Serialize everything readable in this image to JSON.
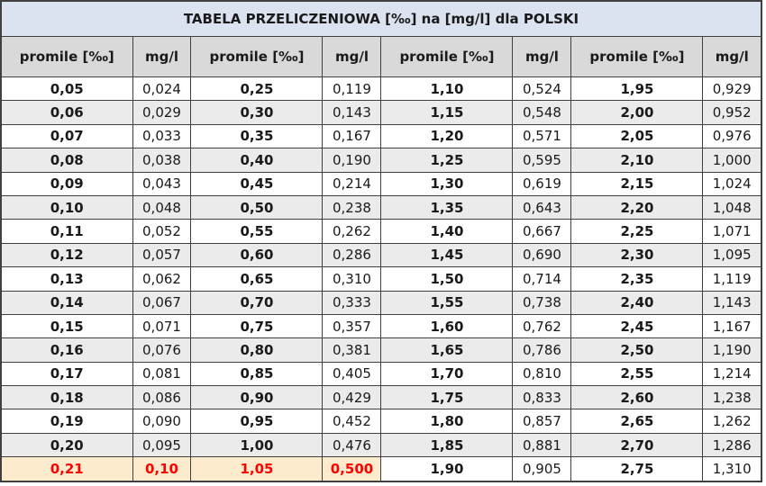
{
  "chart_data": {
    "type": "table",
    "title": "TABELA PRZELICZENIOWA [‰] na [mg/l] dla POLSKI",
    "columns": [
      "promile [‰]",
      "mg/l",
      "promile [‰]",
      "mg/l",
      "promile [‰]",
      "mg/l",
      "promile [‰]",
      "mg/l"
    ],
    "rows": [
      [
        "0,05",
        "0,024",
        "0,25",
        "0,119",
        "1,10",
        "0,524",
        "1,95",
        "0,929"
      ],
      [
        "0,06",
        "0,029",
        "0,30",
        "0,143",
        "1,15",
        "0,548",
        "2,00",
        "0,952"
      ],
      [
        "0,07",
        "0,033",
        "0,35",
        "0,167",
        "1,20",
        "0,571",
        "2,05",
        "0,976"
      ],
      [
        "0,08",
        "0,038",
        "0,40",
        "0,190",
        "1,25",
        "0,595",
        "2,10",
        "1,000"
      ],
      [
        "0,09",
        "0,043",
        "0,45",
        "0,214",
        "1,30",
        "0,619",
        "2,15",
        "1,024"
      ],
      [
        "0,10",
        "0,048",
        "0,50",
        "0,238",
        "1,35",
        "0,643",
        "2,20",
        "1,048"
      ],
      [
        "0,11",
        "0,052",
        "0,55",
        "0,262",
        "1,40",
        "0,667",
        "2,25",
        "1,071"
      ],
      [
        "0,12",
        "0,057",
        "0,60",
        "0,286",
        "1,45",
        "0,690",
        "2,30",
        "1,095"
      ],
      [
        "0,13",
        "0,062",
        "0,65",
        "0,310",
        "1,50",
        "0,714",
        "2,35",
        "1,119"
      ],
      [
        "0,14",
        "0,067",
        "0,70",
        "0,333",
        "1,55",
        "0,738",
        "2,40",
        "1,143"
      ],
      [
        "0,15",
        "0,071",
        "0,75",
        "0,357",
        "1,60",
        "0,762",
        "2,45",
        "1,167"
      ],
      [
        "0,16",
        "0,076",
        "0,80",
        "0,381",
        "1,65",
        "0,786",
        "2,50",
        "1,190"
      ],
      [
        "0,17",
        "0,081",
        "0,85",
        "0,405",
        "1,70",
        "0,810",
        "2,55",
        "1,214"
      ],
      [
        "0,18",
        "0,086",
        "0,90",
        "0,429",
        "1,75",
        "0,833",
        "2,60",
        "1,238"
      ],
      [
        "0,19",
        "0,090",
        "0,95",
        "0,452",
        "1,80",
        "0,857",
        "2,65",
        "1,262"
      ],
      [
        "0,20",
        "0,095",
        "1,00",
        "0,476",
        "1,85",
        "0,881",
        "2,70",
        "1,286"
      ],
      [
        "0,21",
        "0,10",
        "1,05",
        "0,500",
        "1,90",
        "0,905",
        "2,75",
        "1,310"
      ]
    ],
    "highlight": {
      "row": 16,
      "cols": [
        0,
        1,
        2,
        3
      ]
    },
    "layout_hints": {
      "stripe_rows": "even data rows shaded",
      "bold_columns": "promile columns bold",
      "grid": true
    }
  },
  "colors": {
    "title_bg": "#dbe2f0",
    "header_bg": "#d9d9d9",
    "stripe_bg": "#ebebeb",
    "highlight_bg": "#fceccd",
    "highlight_text": "#fe0000",
    "border": "#404040"
  }
}
